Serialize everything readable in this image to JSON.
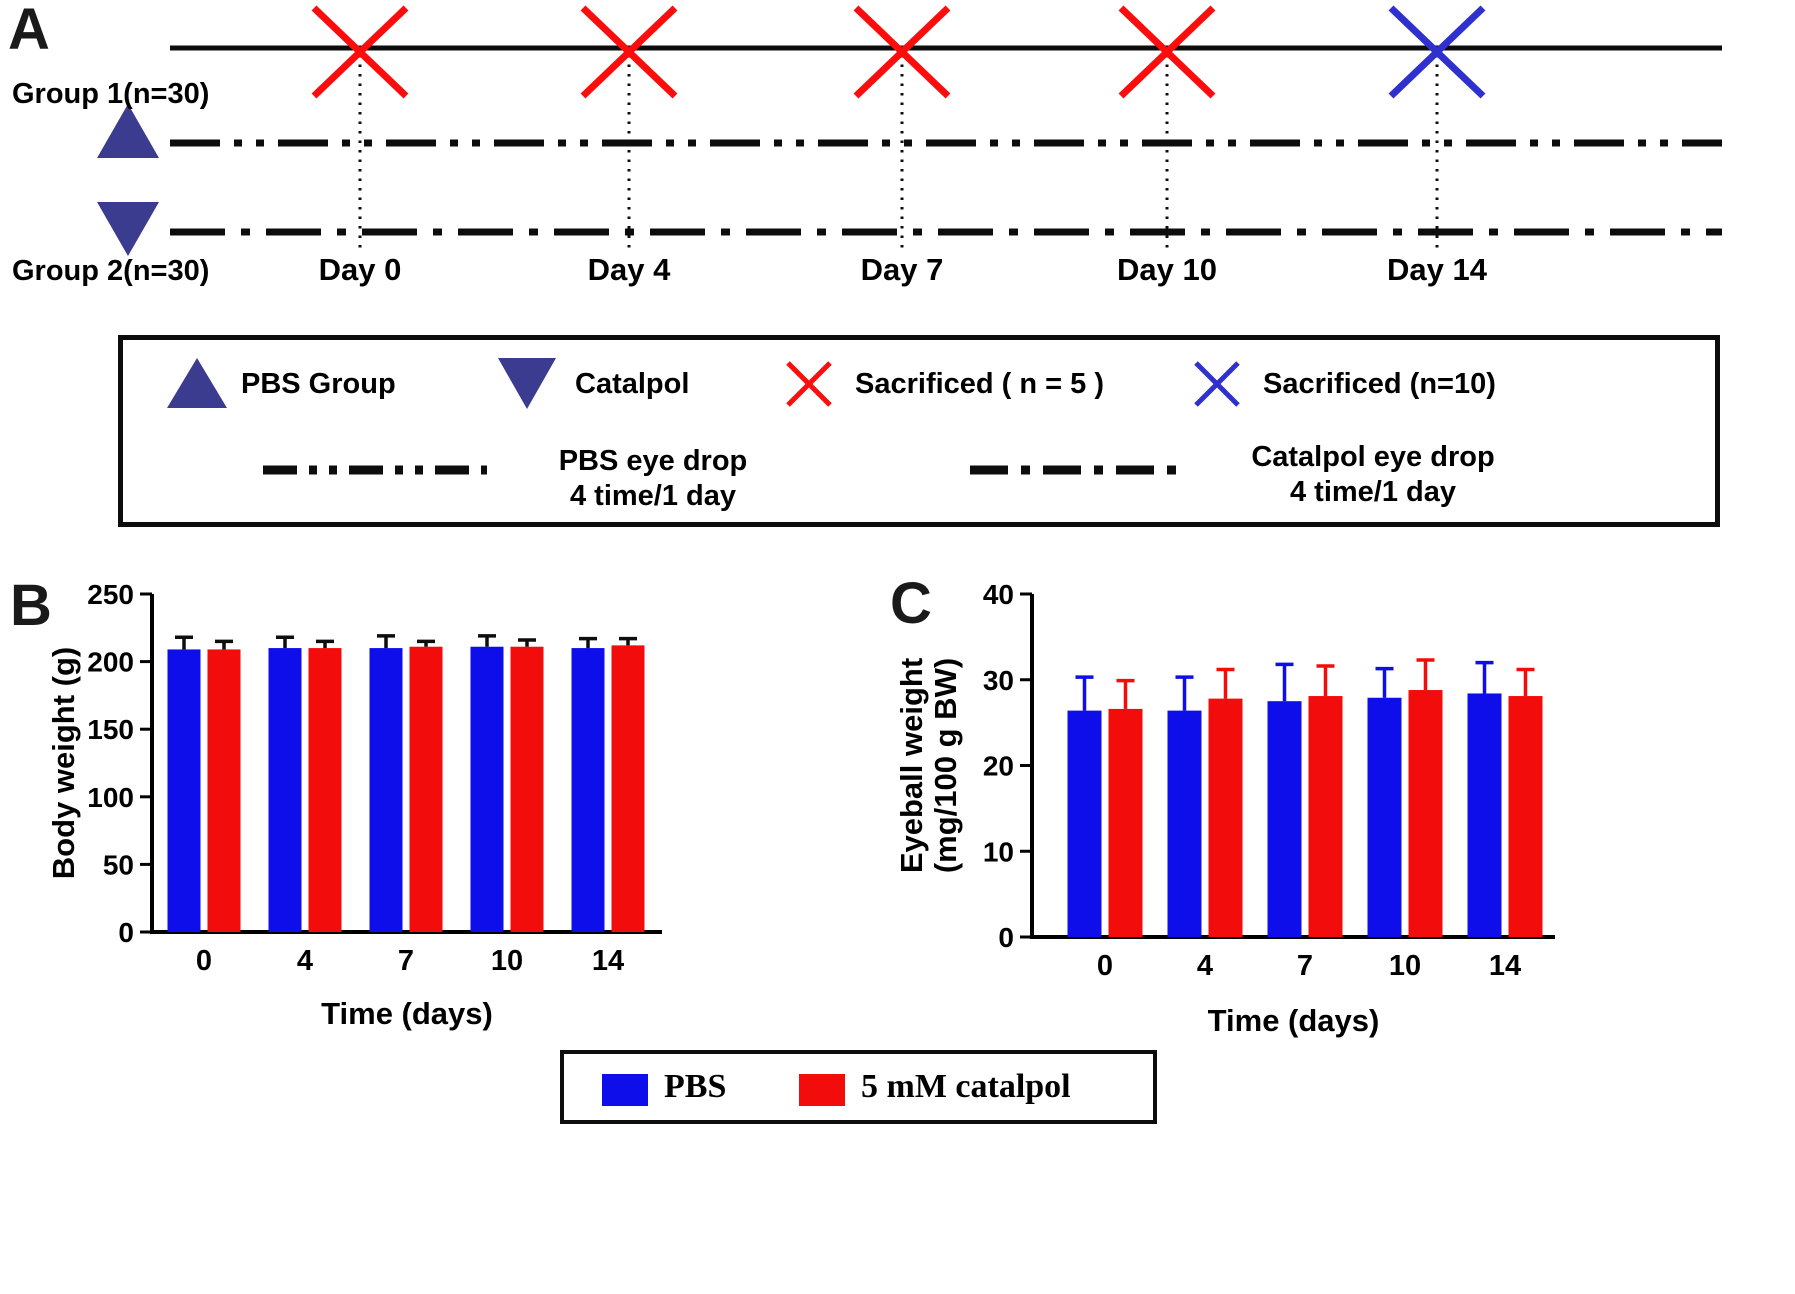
{
  "panelA": {
    "label": "A",
    "group1_label": "Group 1(n=30)",
    "group2_label": "Group 2(n=30)",
    "days": [
      "Day 0",
      "Day 4",
      "Day 7",
      "Day 10",
      "Day 14"
    ],
    "sacrifice_marks": [
      "red",
      "red",
      "red",
      "red",
      "blue"
    ],
    "colors": {
      "red_x": "#fb0d0d",
      "blue_x": "#3030cf",
      "triangle": "#3b3b8f",
      "line": "#0d0d0d"
    },
    "legend": {
      "pbs_group": "PBS Group",
      "catalpol": "Catalpol",
      "sacrificed_red": "Sacrificed ( n = 5 )",
      "sacrificed_blue": "Sacrificed (n=10)",
      "pbs_eye_drop_line1": "PBS eye drop",
      "pbs_eye_drop_line2": "4 time/1 day",
      "catalpol_eye_drop_line1": "Catalpol eye drop",
      "catalpol_eye_drop_line2": "4 time/1 day"
    }
  },
  "chart_data": [
    {
      "id": "B",
      "panel_label": "B",
      "type": "bar",
      "title": "",
      "categories": [
        "0",
        "4",
        "7",
        "10",
        "14"
      ],
      "series": [
        {
          "name": "PBS",
          "color": "#0e0eea",
          "error_color": "#0d0d0d",
          "values": [
            209,
            210,
            210,
            211,
            210
          ],
          "errors": [
            9,
            8,
            9,
            8,
            7
          ]
        },
        {
          "name": "5 mM catalpol",
          "color": "#f20c0c",
          "error_color": "#0d0d0d",
          "values": [
            209,
            210,
            211,
            211,
            212
          ],
          "errors": [
            6,
            5,
            4,
            5,
            5
          ]
        }
      ],
      "xlabel": "Time (days)",
      "ylabel": "Body weight (g)",
      "ylabel_lines": [
        "Body weight (g)"
      ],
      "ylim": [
        0,
        250
      ],
      "yticks": [
        0,
        50,
        100,
        150,
        200,
        250
      ],
      "grid": false,
      "legend_position": "bottom-shared"
    },
    {
      "id": "C",
      "panel_label": "C",
      "type": "bar",
      "title": "",
      "categories": [
        "0",
        "4",
        "7",
        "10",
        "14"
      ],
      "series": [
        {
          "name": "PBS",
          "color": "#0e0eea",
          "values": [
            26.4,
            26.4,
            27.5,
            27.9,
            28.4
          ],
          "errors": [
            3.9,
            3.9,
            4.3,
            3.4,
            3.6
          ]
        },
        {
          "name": "5 mM catalpol",
          "color": "#f20c0c",
          "values": [
            26.6,
            27.8,
            28.1,
            28.8,
            28.1
          ],
          "errors": [
            3.3,
            3.4,
            3.5,
            3.5,
            3.1
          ]
        }
      ],
      "xlabel": "Time (days)",
      "ylabel": "Eyeball weight (mg/100 g BW)",
      "ylabel_lines": [
        "Eyeball weight",
        "(mg/100 g BW)"
      ],
      "ylim": [
        0,
        40
      ],
      "yticks": [
        0,
        10,
        20,
        30,
        40
      ],
      "grid": false,
      "legend_position": "bottom-shared"
    }
  ],
  "bottom_legend": {
    "items": [
      {
        "label": "PBS",
        "color": "#0e0eea"
      },
      {
        "label": "5 mM  catalpol",
        "color": "#f20c0c"
      }
    ]
  }
}
